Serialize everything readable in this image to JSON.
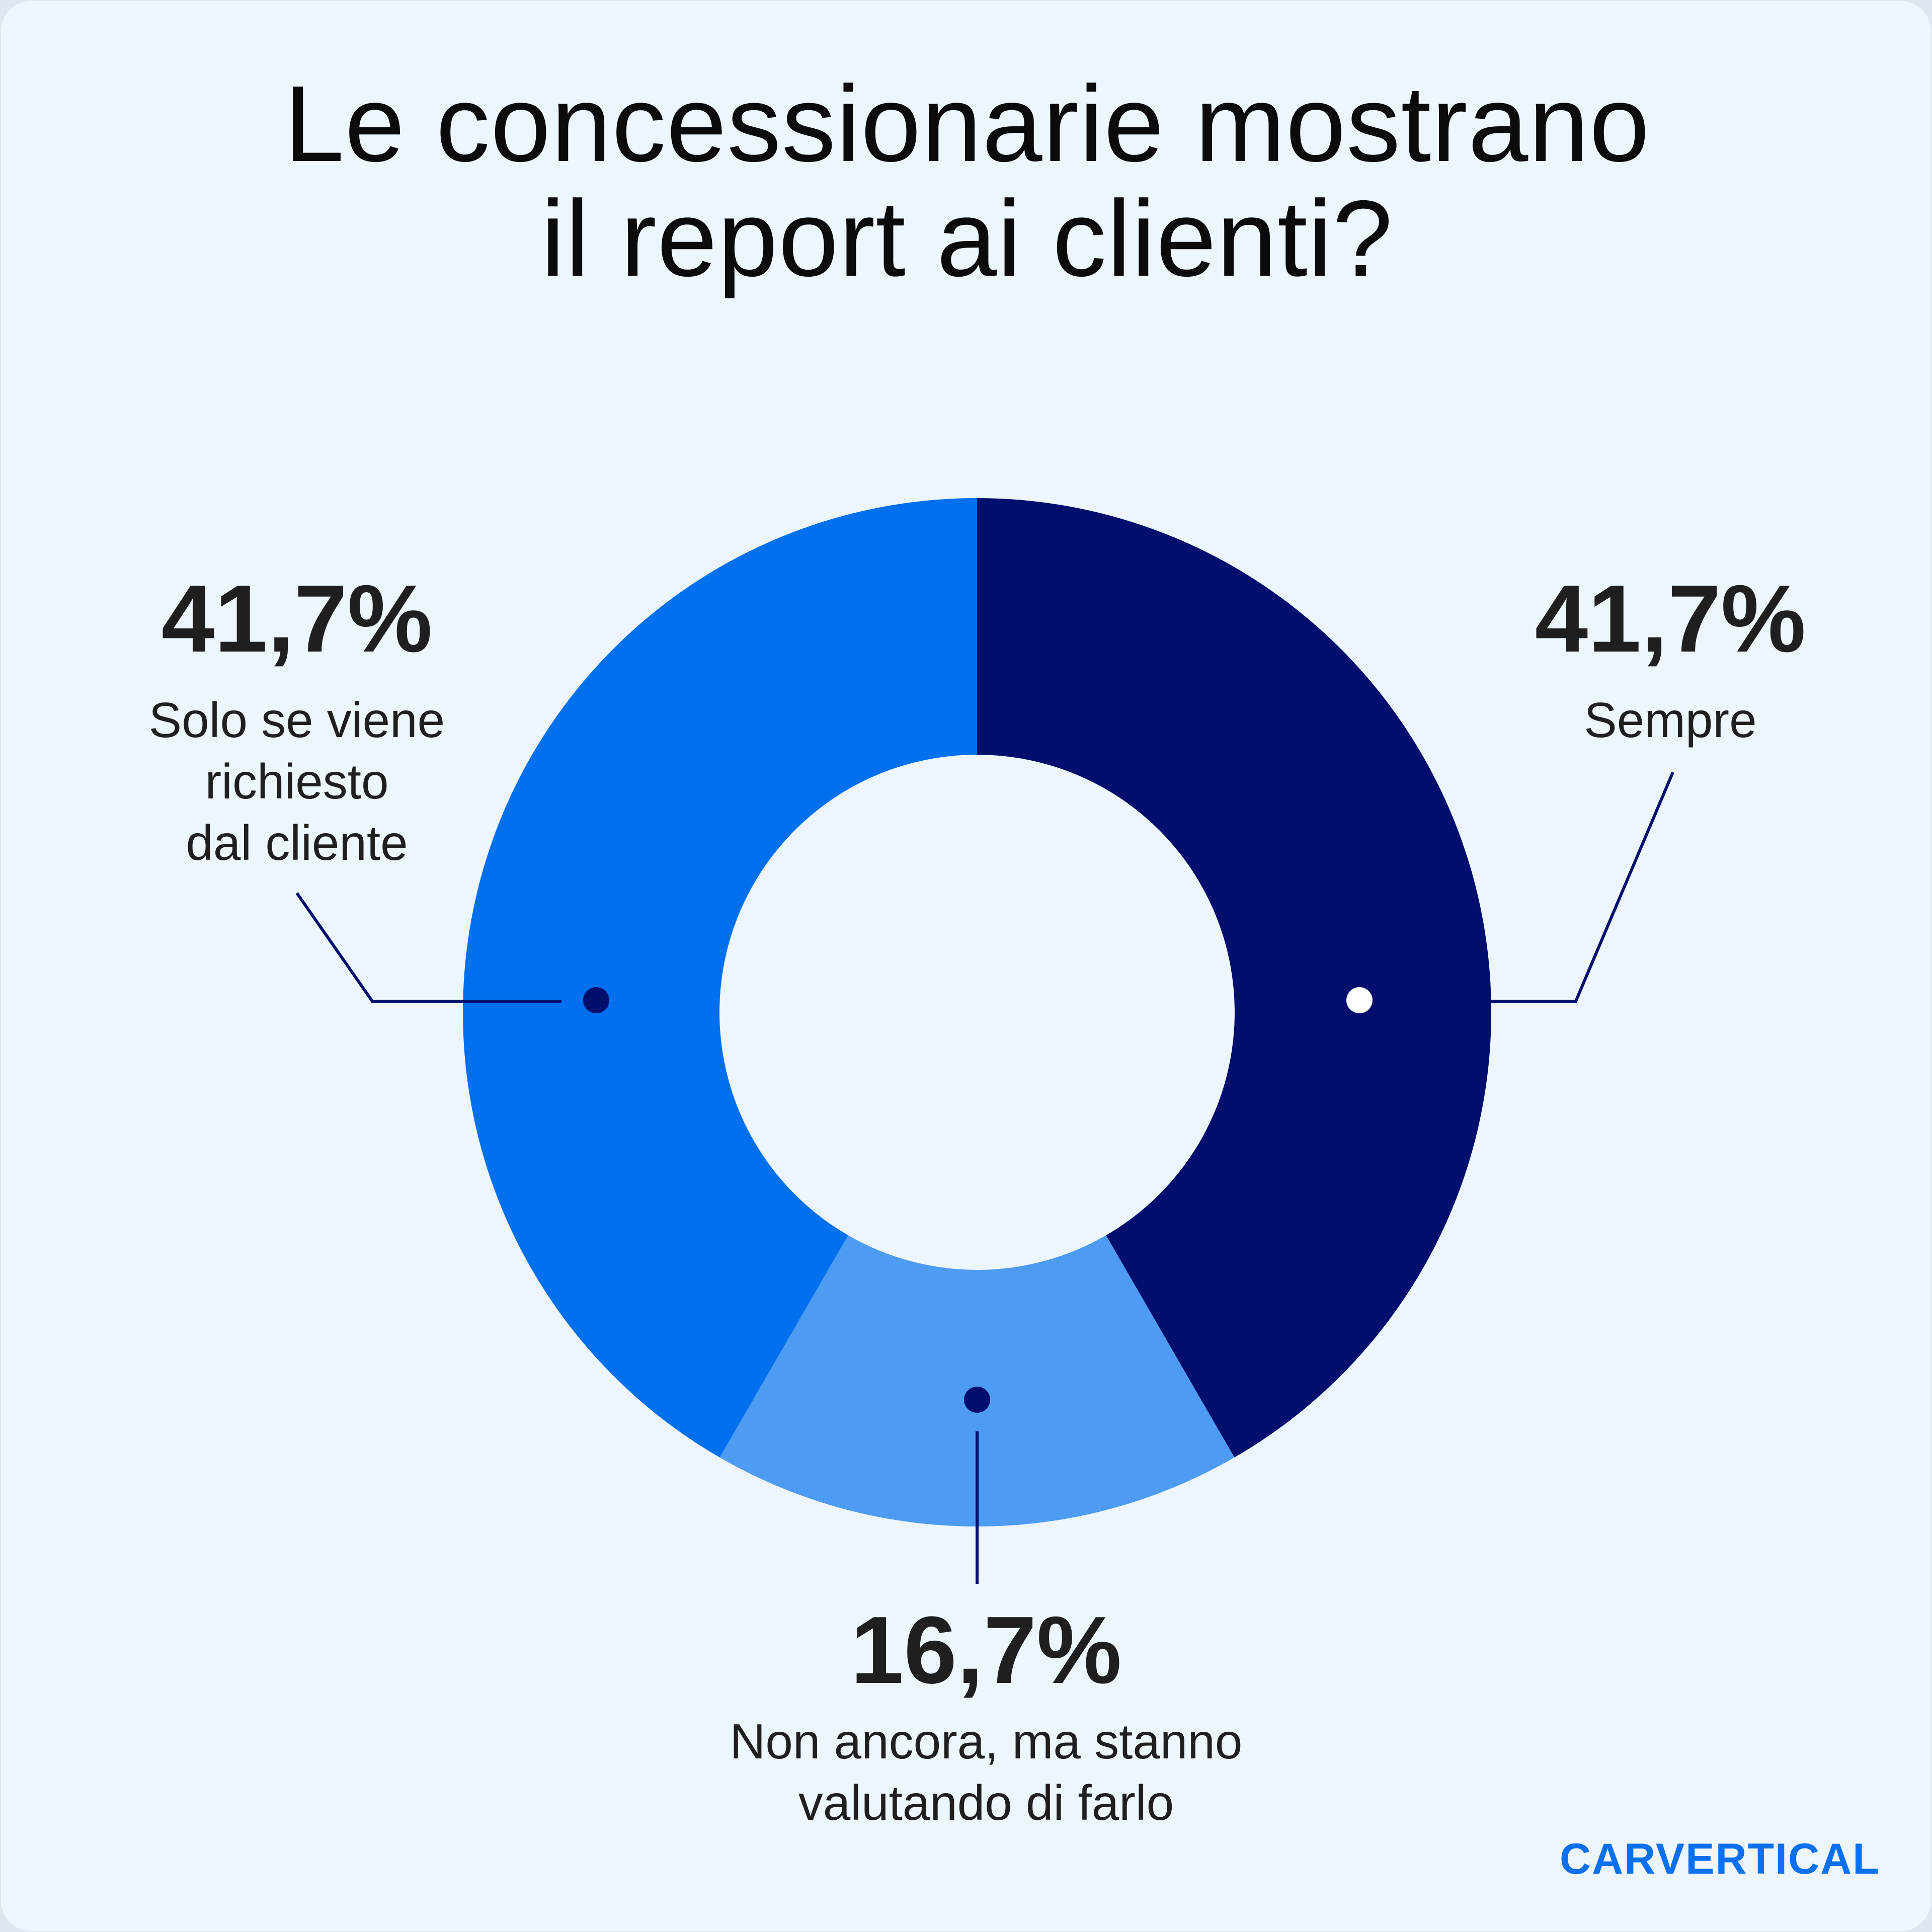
{
  "title_lines": [
    "Le concessionarie mostrano",
    "il report ai clienti?"
  ],
  "chart_data": {
    "type": "pie",
    "donut": true,
    "slices": [
      {
        "label": "Sempre",
        "value": 41.7,
        "display": "41,7%",
        "color": "#000e6e"
      },
      {
        "label": "Non ancora, ma stanno\nvalutando di farlo",
        "value": 16.7,
        "display": "16,7%",
        "color": "#4d9bf3"
      },
      {
        "label": "Solo se viene\nrichiesto\ndal cliente",
        "value": 41.7,
        "display": "41,7%",
        "color": "#0070ef"
      }
    ],
    "legend": "none"
  },
  "brand": "CARVERTICAL",
  "colors": {
    "background": "#eef6fd",
    "connector": "#000e6e"
  }
}
